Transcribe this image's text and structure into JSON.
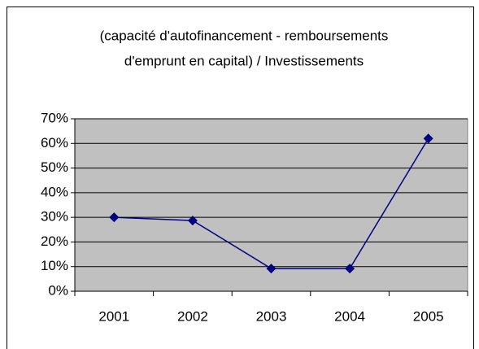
{
  "chart_data": {
    "type": "line",
    "title": [
      "(capacité d'autofinancement - remboursements",
      "d'emprunt en capital) / Investissements"
    ],
    "categories": [
      "2001",
      "2002",
      "2003",
      "2004",
      "2005"
    ],
    "series": [
      {
        "color": "#000080",
        "values": [
          30,
          28.7,
          9.2,
          9.2,
          62
        ]
      }
    ],
    "ylim": [
      0,
      70
    ],
    "yticks": [
      {
        "value": 0,
        "label": "0%"
      },
      {
        "value": 10,
        "label": "10%"
      },
      {
        "value": 20,
        "label": "20%"
      },
      {
        "value": 30,
        "label": "30%"
      },
      {
        "value": 40,
        "label": "40%"
      },
      {
        "value": 50,
        "label": "50%"
      },
      {
        "value": 60,
        "label": "60%"
      },
      {
        "value": 70,
        "label": "70%"
      }
    ],
    "grid": true,
    "plot_background": "#c0c0c0"
  }
}
